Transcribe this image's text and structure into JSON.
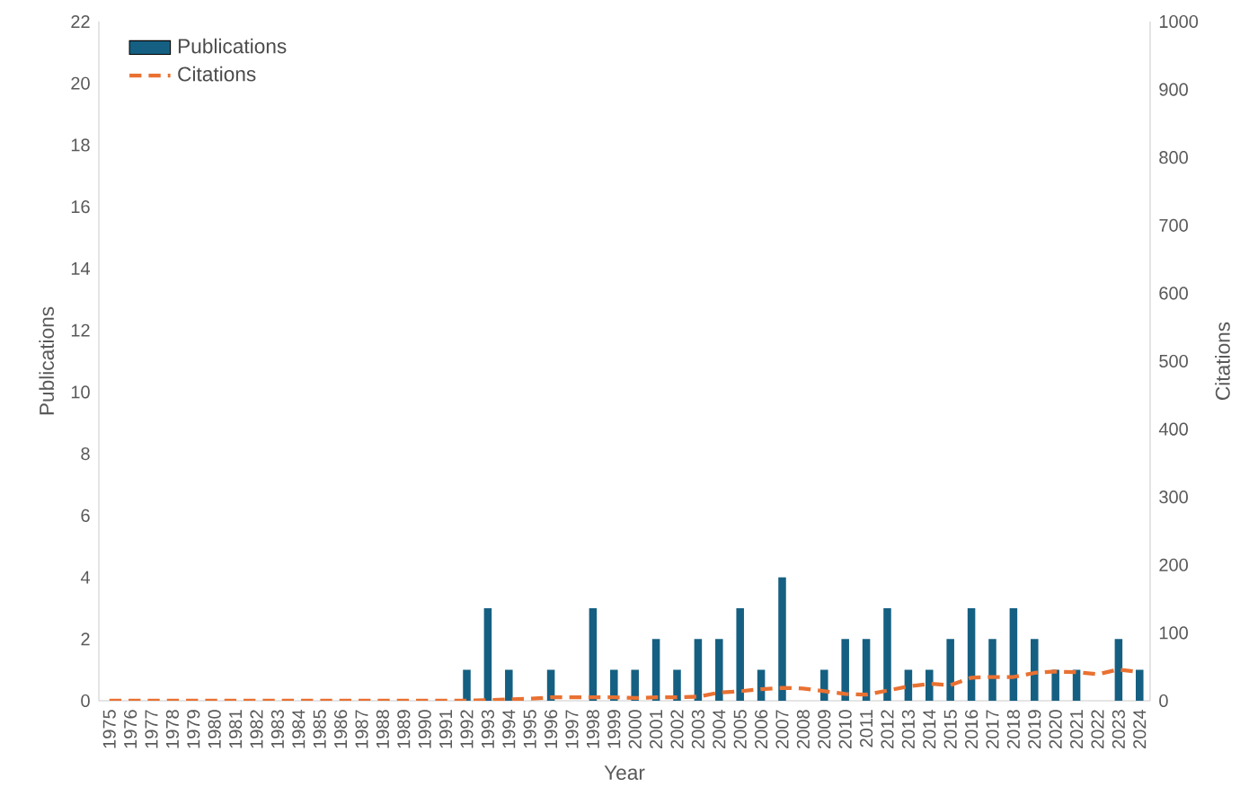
{
  "chart_data": {
    "type": "bar",
    "xlabel": "Year",
    "ylabel": "Publications",
    "y2label": "Citations",
    "categories": [
      "1975",
      "1976",
      "1977",
      "1978",
      "1979",
      "1980",
      "1981",
      "1982",
      "1983",
      "1984",
      "1985",
      "1986",
      "1987",
      "1988",
      "1989",
      "1990",
      "1991",
      "1992",
      "1993",
      "1994",
      "1995",
      "1996",
      "1997",
      "1998",
      "1999",
      "2000",
      "2001",
      "2002",
      "2003",
      "2004",
      "2005",
      "2006",
      "2007",
      "2008",
      "2009",
      "2010",
      "2011",
      "2012",
      "2013",
      "2014",
      "2015",
      "2016",
      "2017",
      "2018",
      "2019",
      "2020",
      "2021",
      "2022",
      "2023",
      "2024"
    ],
    "series": [
      {
        "name": "Publications",
        "color": "#156082",
        "values": [
          0,
          0,
          0,
          0,
          0,
          0,
          0,
          0,
          0,
          0,
          0,
          0,
          0,
          0,
          0,
          0,
          0,
          1,
          3,
          1,
          0,
          1,
          0,
          3,
          1,
          1,
          2,
          1,
          2,
          2,
          3,
          1,
          4,
          0,
          1,
          2,
          2,
          3,
          1,
          1,
          2,
          3,
          2,
          3,
          2,
          1,
          1,
          0,
          2,
          1
        ]
      },
      {
        "name": "Citations",
        "type": "line",
        "axis": "y2",
        "color": "#e97132",
        "line_style": "dashed",
        "values": [
          0,
          0,
          0,
          0,
          0,
          0,
          0,
          0,
          0,
          0,
          0,
          0,
          0,
          0,
          0,
          0,
          0,
          0,
          1,
          2,
          3,
          5,
          5,
          5,
          5,
          4,
          5,
          5,
          6,
          12,
          14,
          17,
          19,
          18,
          14,
          10,
          9,
          15,
          21,
          25,
          23,
          34,
          35,
          35,
          41,
          43,
          42,
          39,
          46,
          42
        ]
      }
    ],
    "ylim": [
      0,
      22
    ],
    "yticks": [
      0,
      2,
      4,
      6,
      8,
      10,
      12,
      14,
      16,
      18,
      20,
      22
    ],
    "y2lim": [
      0,
      1000
    ],
    "y2ticks": [
      0,
      100,
      200,
      300,
      400,
      500,
      600,
      700,
      800,
      900,
      1000
    ],
    "grid": false,
    "legend": "top left",
    "marker": "none"
  }
}
